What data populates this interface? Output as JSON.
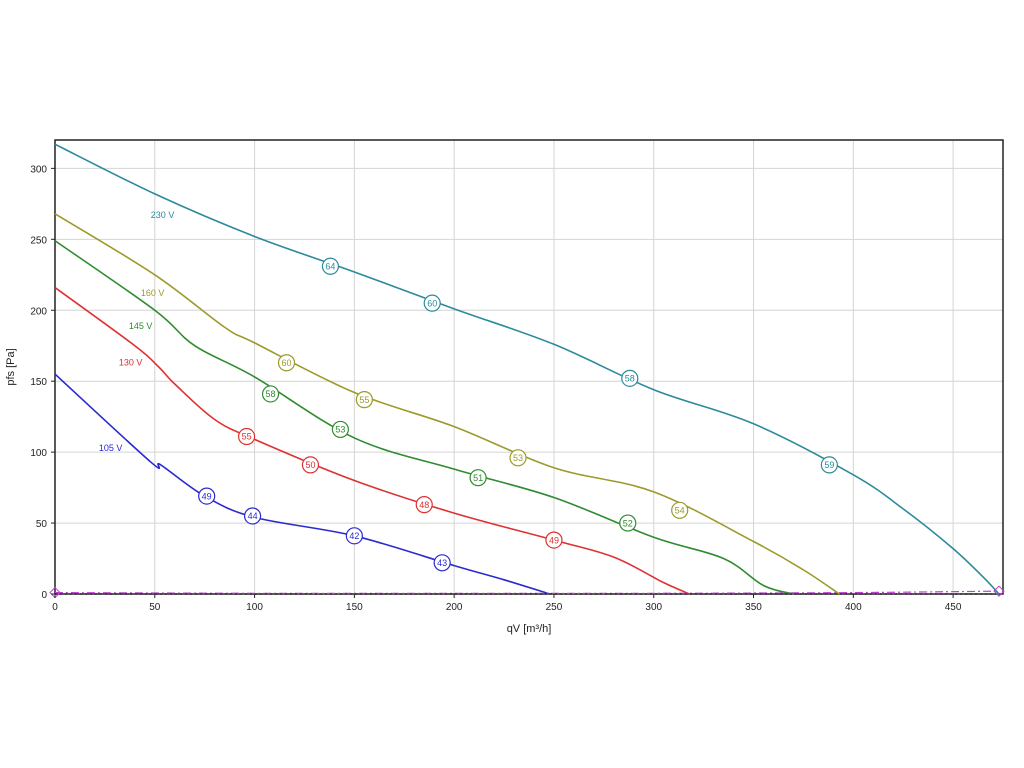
{
  "chart_data": {
    "type": "line",
    "xlabel": "qV [m³/h]",
    "ylabel": "pfs [Pa]",
    "xlim": [
      0,
      475
    ],
    "ylim": [
      0,
      320
    ],
    "xticks": [
      0,
      50,
      100,
      150,
      200,
      250,
      300,
      350,
      400,
      450
    ],
    "yticks": [
      0,
      50,
      100,
      150,
      200,
      250,
      300
    ],
    "grid": true,
    "legend": "none",
    "series": [
      {
        "name": "230 V",
        "color": "#2b8a9c",
        "x": [
          0,
          50,
          100,
          150,
          200,
          250,
          300,
          350,
          400,
          425,
          450,
          465,
          473
        ],
        "y": [
          317,
          282,
          252,
          227,
          201,
          176,
          144,
          120,
          84,
          60,
          32,
          12,
          0
        ],
        "markers": [
          {
            "x": 138,
            "y": 231,
            "label": "64"
          },
          {
            "x": 189,
            "y": 205,
            "label": "60"
          },
          {
            "x": 288,
            "y": 152,
            "label": "58"
          },
          {
            "x": 388,
            "y": 91,
            "label": "59"
          }
        ],
        "label_pos": {
          "x": 48,
          "y": 267
        }
      },
      {
        "name": "160 V",
        "color": "#9c9a2a",
        "x": [
          0,
          50,
          85,
          100,
          150,
          200,
          250,
          300,
          350,
          375,
          393
        ],
        "y": [
          268,
          225,
          188,
          177,
          142,
          118,
          89,
          72,
          37,
          17,
          0
        ],
        "markers": [
          {
            "x": 116,
            "y": 163,
            "label": "60"
          },
          {
            "x": 155,
            "y": 137,
            "label": "55"
          },
          {
            "x": 232,
            "y": 96,
            "label": "53"
          },
          {
            "x": 313,
            "y": 59,
            "label": "54"
          }
        ],
        "label_pos": {
          "x": 43,
          "y": 212
        }
      },
      {
        "name": "145 V",
        "color": "#2e8b2e",
        "x": [
          0,
          50,
          70,
          100,
          150,
          200,
          250,
          300,
          335,
          355,
          370
        ],
        "y": [
          249,
          200,
          175,
          153,
          110,
          88,
          68,
          40,
          25,
          6,
          0
        ],
        "markers": [
          {
            "x": 108,
            "y": 141,
            "label": "58"
          },
          {
            "x": 143,
            "y": 116,
            "label": "53"
          },
          {
            "x": 212,
            "y": 82,
            "label": "51"
          },
          {
            "x": 287,
            "y": 50,
            "label": "52"
          }
        ],
        "label_pos": {
          "x": 37,
          "y": 189
        }
      },
      {
        "name": "130 V",
        "color": "#e03030",
        "x": [
          0,
          40,
          52,
          60,
          80,
          100,
          150,
          200,
          250,
          280,
          305,
          318
        ],
        "y": [
          216,
          175,
          160,
          148,
          123,
          109,
          80,
          57,
          38,
          26,
          8,
          0
        ],
        "markers": [
          {
            "x": 96,
            "y": 111,
            "label": "55"
          },
          {
            "x": 128,
            "y": 91,
            "label": "50"
          },
          {
            "x": 185,
            "y": 63,
            "label": "48"
          },
          {
            "x": 250,
            "y": 38,
            "label": "49"
          }
        ],
        "label_pos": {
          "x": 32,
          "y": 163
        }
      },
      {
        "name": "105 V",
        "color": "#2a2ad0",
        "x": [
          0,
          48,
          53,
          75,
          100,
          150,
          200,
          225,
          248
        ],
        "y": [
          155,
          93,
          91,
          69,
          54,
          41,
          20,
          10,
          0
        ],
        "markers": [
          {
            "x": 76,
            "y": 69,
            "label": "49"
          },
          {
            "x": 99,
            "y": 55,
            "label": "44"
          },
          {
            "x": 150,
            "y": 41,
            "label": "42"
          },
          {
            "x": 194,
            "y": 22,
            "label": "43"
          }
        ],
        "label_pos": {
          "x": 22,
          "y": 103
        }
      },
      {
        "name": "",
        "color": "#c23ad6",
        "style": "dashdot",
        "x": [
          0,
          100,
          200,
          300,
          400,
          473
        ],
        "y": [
          1,
          0.5,
          0.5,
          0.5,
          1,
          2
        ]
      },
      {
        "name": "",
        "color": "#1a1a1a",
        "style": "dotted",
        "x": [
          0,
          100,
          200,
          300,
          400,
          473
        ],
        "y": [
          0,
          0,
          0,
          0,
          0,
          0
        ]
      }
    ]
  }
}
